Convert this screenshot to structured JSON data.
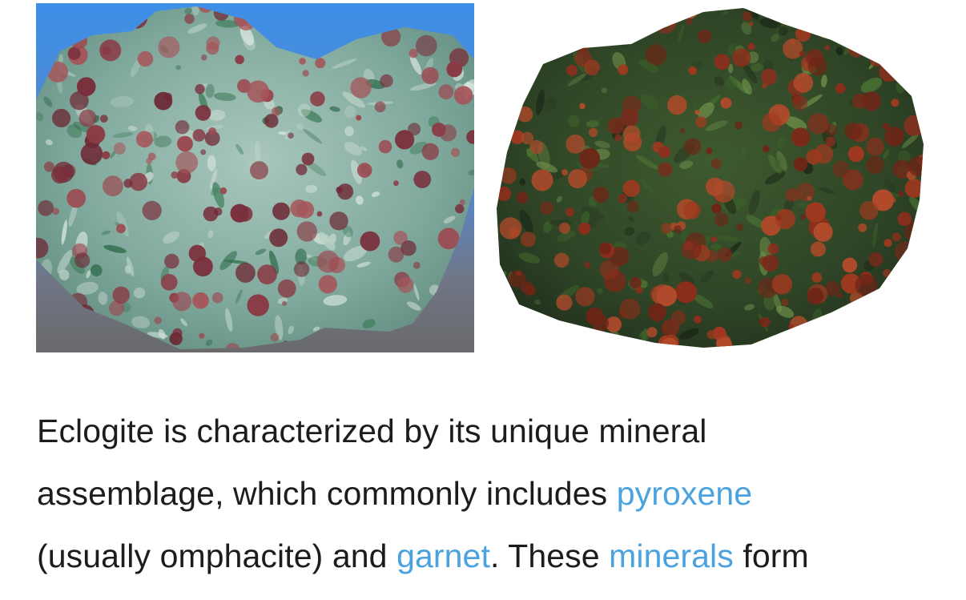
{
  "images": [
    {
      "alt": "Eclogite specimen with red garnet on pale green groundmass"
    },
    {
      "alt": "Eclogite specimen with red garnet on dark green groundmass"
    }
  ],
  "article": {
    "line1": "Eclogite is characterized by its unique mineral",
    "line2_prefix": "assemblage, which commonly includes ",
    "link_pyroxene": "pyroxene",
    "line3_prefix": "(usually omphacite) and ",
    "link_garnet": "garnet",
    "line3_middle": ". These ",
    "link_minerals": "minerals",
    "line3_suffix": " form"
  },
  "colors": {
    "text": "#1c1c1e",
    "link": "#4aa3df",
    "background": "#ffffff"
  }
}
